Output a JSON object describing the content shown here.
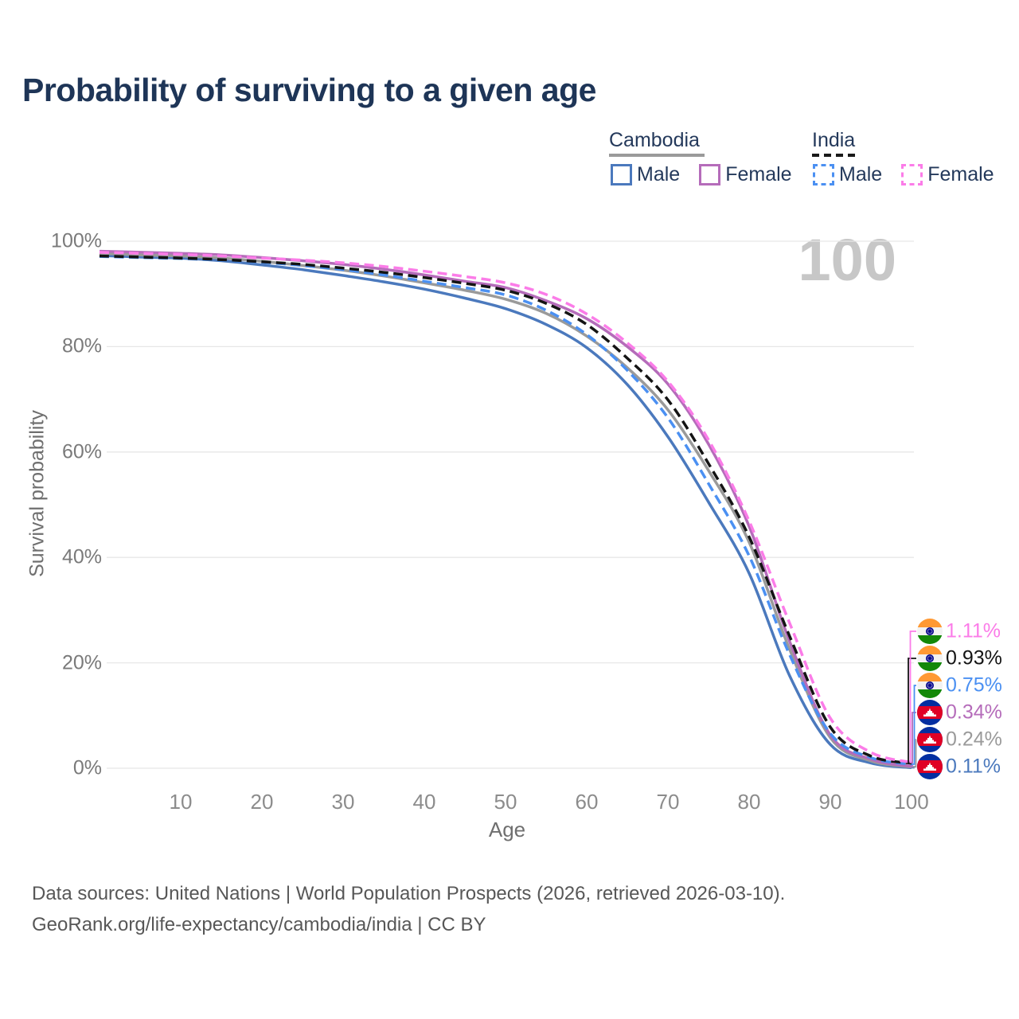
{
  "title": "Probability of surviving to a given age",
  "watermark": "100",
  "legend": {
    "groups": [
      {
        "country": "Cambodia",
        "line_style": "solid",
        "underline_color": "#9a9a9a",
        "items": [
          {
            "label": "Male",
            "color": "#4b79bd",
            "dashed": false
          },
          {
            "label": "Female",
            "color": "#b56cba",
            "dashed": false
          }
        ]
      },
      {
        "country": "India",
        "line_style": "dashed",
        "underline_color": "#1a1a1a",
        "items": [
          {
            "label": "Male",
            "color": "#4b90f2",
            "dashed": true
          },
          {
            "label": "Female",
            "color": "#fb7ce8",
            "dashed": true
          }
        ]
      }
    ]
  },
  "chart_data": {
    "type": "line",
    "title": "Probability of surviving to a given age",
    "xlabel": "Age",
    "ylabel": "Survival probability",
    "xlim": [
      0,
      100
    ],
    "ylim": [
      0,
      100
    ],
    "grid": "horizontal",
    "x": [
      0,
      5,
      10,
      15,
      20,
      25,
      30,
      35,
      40,
      45,
      50,
      55,
      60,
      65,
      70,
      75,
      80,
      85,
      90,
      95,
      100
    ],
    "xticks": [
      {
        "v": 10,
        "label": "10"
      },
      {
        "v": 20,
        "label": "20"
      },
      {
        "v": 30,
        "label": "30"
      },
      {
        "v": 40,
        "label": "40"
      },
      {
        "v": 50,
        "label": "50"
      },
      {
        "v": 60,
        "label": "60"
      },
      {
        "v": 70,
        "label": "70"
      },
      {
        "v": 80,
        "label": "80"
      },
      {
        "v": 90,
        "label": "90"
      },
      {
        "v": 100,
        "label": "100"
      }
    ],
    "yticks": [
      {
        "v": 0,
        "label": "0%"
      },
      {
        "v": 20,
        "label": "20%"
      },
      {
        "v": 40,
        "label": "40%"
      },
      {
        "v": 60,
        "label": "60%"
      },
      {
        "v": 80,
        "label": "80%"
      },
      {
        "v": 100,
        "label": "100%"
      }
    ],
    "series": [
      {
        "name": "Cambodia Male",
        "country": "cambodia",
        "sex": "male",
        "color": "#4b79bd",
        "dashed": false,
        "values": [
          97.3,
          97.0,
          96.8,
          96.3,
          95.5,
          94.6,
          93.5,
          92.3,
          90.9,
          89.2,
          87.2,
          84.2,
          79.8,
          72.8,
          62.9,
          50.5,
          37.0,
          17.5,
          4.5,
          1.0,
          0.11
        ],
        "end_label": "0.11%",
        "label_row": 5
      },
      {
        "name": "Cambodia Both sexes",
        "country": "cambodia",
        "sex": "both",
        "color": "#9a9a9a",
        "dashed": false,
        "values": [
          97.7,
          97.4,
          97.2,
          96.8,
          96.2,
          95.4,
          94.5,
          93.4,
          92.1,
          90.7,
          89.0,
          86.3,
          82.0,
          76.0,
          68.0,
          56.5,
          42.9,
          22.5,
          5.8,
          1.4,
          0.24
        ],
        "end_label": "0.24%",
        "label_row": 4
      },
      {
        "name": "Cambodia Female",
        "country": "cambodia",
        "sex": "female",
        "color": "#b56cba",
        "dashed": false,
        "values": [
          98.1,
          97.9,
          97.7,
          97.4,
          96.9,
          96.3,
          95.6,
          94.7,
          93.6,
          92.4,
          91.2,
          88.7,
          85.3,
          80.0,
          72.9,
          61.5,
          45.9,
          24.0,
          6.3,
          1.7,
          0.34
        ],
        "end_label": "0.34%",
        "label_row": 3
      },
      {
        "name": "India Male",
        "country": "india",
        "sex": "male",
        "color": "#4b90f2",
        "dashed": true,
        "values": [
          97.1,
          96.9,
          96.7,
          96.4,
          96.0,
          95.4,
          94.6,
          93.6,
          92.4,
          91.2,
          89.8,
          86.9,
          82.3,
          75.5,
          66.5,
          54.0,
          40.3,
          21.5,
          6.6,
          2.0,
          0.75
        ],
        "end_label": "0.75%",
        "label_row": 2
      },
      {
        "name": "India Both sexes",
        "country": "india",
        "sex": "both",
        "color": "#141414",
        "dashed": true,
        "values": [
          97.2,
          97.0,
          96.8,
          96.5,
          96.1,
          95.6,
          94.9,
          94.1,
          93.1,
          92.0,
          90.7,
          88.2,
          84.2,
          77.8,
          69.9,
          57.8,
          43.9,
          25.0,
          7.8,
          2.3,
          0.93
        ],
        "end_label": "0.93%",
        "label_row": 1
      },
      {
        "name": "India Female",
        "country": "india",
        "sex": "female",
        "color": "#fb7ce8",
        "dashed": true,
        "values": [
          97.9,
          97.7,
          97.5,
          97.2,
          96.8,
          96.4,
          95.9,
          95.2,
          94.3,
          93.3,
          92.1,
          89.9,
          86.2,
          80.7,
          73.4,
          62.3,
          46.9,
          27.5,
          9.5,
          3.0,
          1.11
        ],
        "end_label": "1.11%",
        "label_row": 0
      }
    ]
  },
  "flags": {
    "india": {
      "saffron": "#ff9933",
      "white": "#f2f2f2",
      "green": "#138808",
      "navy": "#000088"
    },
    "cambodia": {
      "blue": "#032ea1",
      "red": "#e00025",
      "white": "#ffffff"
    }
  },
  "footer": {
    "line1": "Data sources: United Nations | World Population Prospects (2026, retrieved 2026-03-10).",
    "line2": "GeoRank.org/life-expectancy/cambodia/india | CC BY"
  }
}
